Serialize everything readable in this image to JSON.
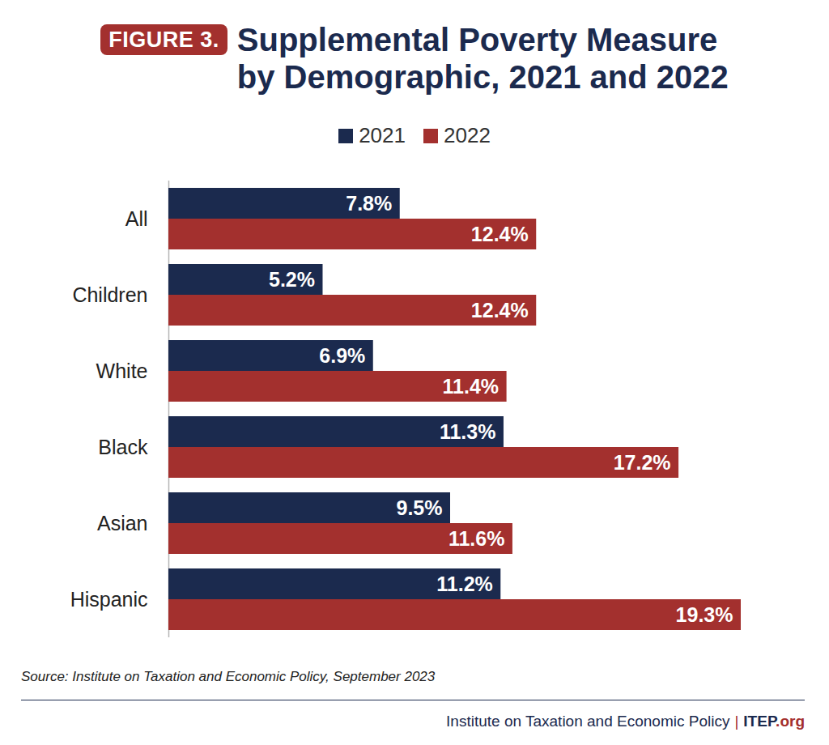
{
  "chart_data": {
    "type": "bar",
    "orientation": "horizontal",
    "title": "Supplemental Poverty Measure\nby Demographic, 2021 and 2022",
    "annotations": {
      "badge": "FIGURE 3.",
      "source": "Source: Institute on Taxation and Economic Policy, September 2023",
      "footer": "Institute on Taxation and Economic Policy",
      "footer_separator": "|",
      "footer_site": "ITEP.org"
    },
    "categories": [
      "All",
      "Children",
      "White",
      "Black",
      "Asian",
      "Hispanic"
    ],
    "series": [
      {
        "name": "2021",
        "color": "#1b2a4e",
        "values": [
          7.8,
          5.2,
          6.9,
          11.3,
          9.5,
          11.2
        ],
        "value_labels": [
          "7.8%",
          "5.2%",
          "6.9%",
          "11.3%",
          "9.5%",
          "11.2%"
        ]
      },
      {
        "name": "2022",
        "color": "#a3302e",
        "values": [
          12.4,
          12.4,
          11.4,
          17.2,
          11.6,
          19.3
        ],
        "value_labels": [
          "12.4%",
          "12.4%",
          "11.4%",
          "17.2%",
          "11.6%",
          "19.3%"
        ]
      }
    ],
    "xlim": [
      0,
      19.3
    ],
    "data_labels": true,
    "legend": "top",
    "tick_labels": "y",
    "grid": false
  }
}
